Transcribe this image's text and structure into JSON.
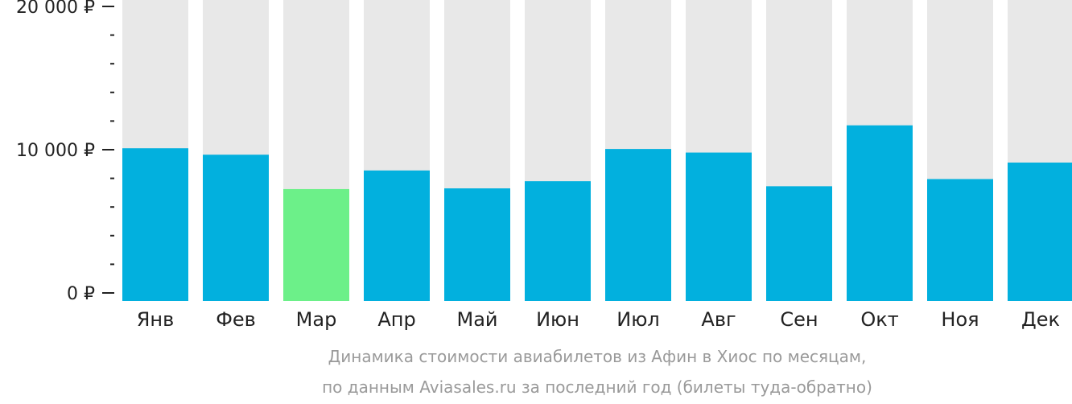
{
  "chart_data": {
    "type": "bar",
    "categories": [
      "Янв",
      "Фев",
      "Мар",
      "Апр",
      "Май",
      "Июн",
      "Июл",
      "Авг",
      "Сен",
      "Окт",
      "Ноя",
      "Дек"
    ],
    "values": [
      10100,
      9650,
      7250,
      8550,
      7300,
      7800,
      10050,
      9800,
      7450,
      11700,
      7950,
      9100
    ],
    "ylim": [
      0,
      20000
    ],
    "yticks": [
      {
        "value": 0,
        "label": "0 ₽"
      },
      {
        "value": 10000,
        "label": "10 000 ₽"
      },
      {
        "value": 20000,
        "label": "20 000 ₽"
      }
    ],
    "minor_tick_step": 2000,
    "highlight_category": "Мар",
    "colors": {
      "bar": "#02b0de",
      "highlight": "#6cf089",
      "track": "#e8e8e8",
      "axis": "#222222"
    },
    "caption_lines": [
      "Динамика стоимости авиабилетов из Афин в Хиос по месяцам,",
      "по данным Aviasales.ru за последний год (билеты туда-обратно)"
    ]
  }
}
